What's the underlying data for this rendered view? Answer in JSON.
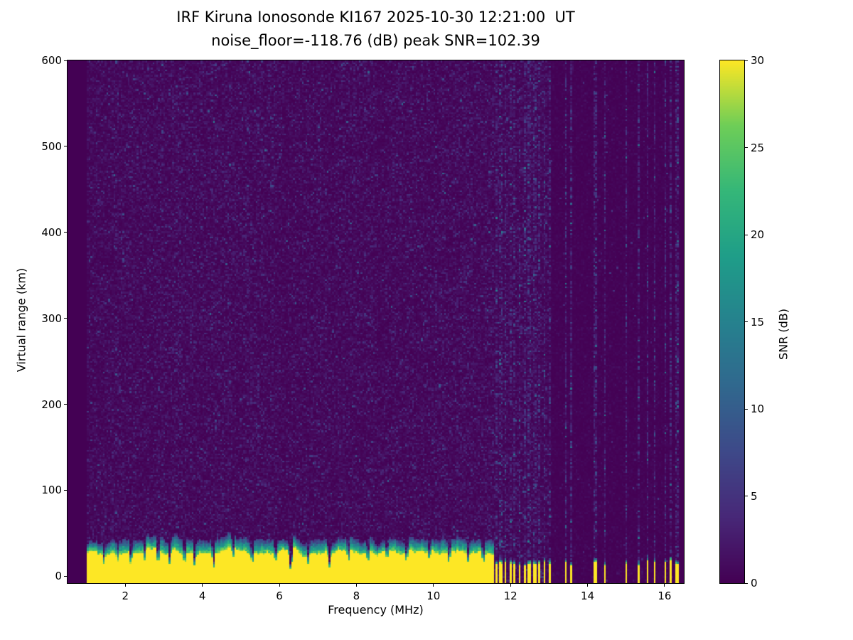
{
  "title": {
    "line1": "IRF Kiruna Ionosonde KI167 2025-10-30 12:21:00  UT",
    "line2": "noise_floor=-118.76 (dB) peak SNR=102.39"
  },
  "axes": {
    "xlabel": "Frequency (MHz)",
    "ylabel": "Virtual range (km)",
    "xlim": [
      0.5,
      16.5
    ],
    "ylim": [
      -8,
      600
    ],
    "xticks": [
      2,
      4,
      6,
      8,
      10,
      12,
      14,
      16
    ],
    "yticks": [
      0,
      100,
      200,
      300,
      400,
      500,
      600
    ]
  },
  "colorbar": {
    "label": "SNR (dB)",
    "min": 0,
    "max": 30,
    "ticks": [
      0,
      5,
      10,
      15,
      20,
      25,
      30
    ]
  },
  "chart_data": {
    "type": "heatmap",
    "title": "IRF Kiruna Ionosonde KI167 2025-10-30 12:21:00  UT",
    "subtitle": "noise_floor=-118.76 (dB) peak SNR=102.39",
    "station": "IRF Kiruna Ionosonde KI167",
    "timestamp_ut": "2025-10-30 12:21:00 UT",
    "noise_floor_db": -118.76,
    "peak_snr_db": 102.39,
    "xlabel": "Frequency (MHz)",
    "ylabel": "Virtual range (km)",
    "zlabel": "SNR (dB)",
    "xlim": [
      0.5,
      16.5
    ],
    "ylim": [
      -8,
      600
    ],
    "zlim": [
      0,
      30
    ],
    "colormap": "viridis",
    "viridis_stops": [
      [
        0.0,
        68,
        1,
        84
      ],
      [
        0.125,
        72,
        40,
        120
      ],
      [
        0.25,
        62,
        73,
        137
      ],
      [
        0.375,
        49,
        104,
        142
      ],
      [
        0.5,
        38,
        130,
        142
      ],
      [
        0.625,
        31,
        158,
        137
      ],
      [
        0.75,
        53,
        183,
        121
      ],
      [
        0.875,
        110,
        206,
        88
      ],
      [
        1.0,
        253,
        231,
        37
      ]
    ],
    "data_freq_range_mhz": [
      1.0,
      16.42
    ],
    "continuous_band_max_mhz": 11.58,
    "echo_band": {
      "yellow_top_base_km": 20,
      "yellow_top_var_km": 16,
      "green_extra_base_km": 8,
      "green_extra_var_km": 14,
      "stripe_yellow_base_km": 8,
      "stripe_yellow_var_km": 16
    },
    "band_stripes_mhz": [
      [
        11.6,
        11.66
      ],
      [
        11.72,
        11.78
      ],
      [
        11.84,
        11.9
      ],
      [
        11.96,
        12.02
      ],
      [
        12.08,
        12.14
      ],
      [
        12.2,
        12.26
      ],
      [
        12.33,
        12.39
      ],
      [
        12.46,
        12.52
      ],
      [
        12.59,
        12.65
      ],
      [
        12.72,
        12.78
      ],
      [
        12.85,
        12.91
      ],
      [
        12.98,
        13.04
      ],
      [
        13.42,
        13.47
      ],
      [
        13.53,
        13.58
      ],
      [
        14.16,
        14.22
      ],
      [
        14.43,
        14.48
      ],
      [
        14.98,
        15.04
      ],
      [
        15.31,
        15.37
      ],
      [
        15.53,
        15.58
      ],
      [
        15.7,
        15.75
      ],
      [
        15.98,
        16.04
      ],
      [
        16.14,
        16.19
      ],
      [
        16.29,
        16.34
      ]
    ],
    "band_notches": [
      [
        1.45,
        0.05,
        0.5
      ],
      [
        1.8,
        0.05,
        0.55
      ],
      [
        2.15,
        0.06,
        0.45
      ],
      [
        2.5,
        0.05,
        0.6
      ],
      [
        2.85,
        0.06,
        0.35
      ],
      [
        3.15,
        0.05,
        0.5
      ],
      [
        3.55,
        0.06,
        0.5
      ],
      [
        3.8,
        0.05,
        0.45
      ],
      [
        4.3,
        0.06,
        0.3
      ],
      [
        4.8,
        0.05,
        0.55
      ],
      [
        5.3,
        0.06,
        0.5
      ],
      [
        5.9,
        0.05,
        0.5
      ],
      [
        6.3,
        0.07,
        0.12
      ],
      [
        6.75,
        0.05,
        0.55
      ],
      [
        7.3,
        0.06,
        0.4
      ],
      [
        7.8,
        0.05,
        0.55
      ],
      [
        8.3,
        0.06,
        0.5
      ],
      [
        8.8,
        0.05,
        0.55
      ],
      [
        9.3,
        0.06,
        0.5
      ],
      [
        9.9,
        0.05,
        0.55
      ],
      [
        10.4,
        0.06,
        0.5
      ],
      [
        10.9,
        0.05,
        0.55
      ],
      [
        11.3,
        0.06,
        0.45
      ]
    ],
    "noise": {
      "background_mean_db": 1.0,
      "speckle_prob": 0.012,
      "rfi_boost": 2.4,
      "mid_gap_boost": 1.1,
      "quiet_boost": 0.3
    },
    "seed": 167
  }
}
